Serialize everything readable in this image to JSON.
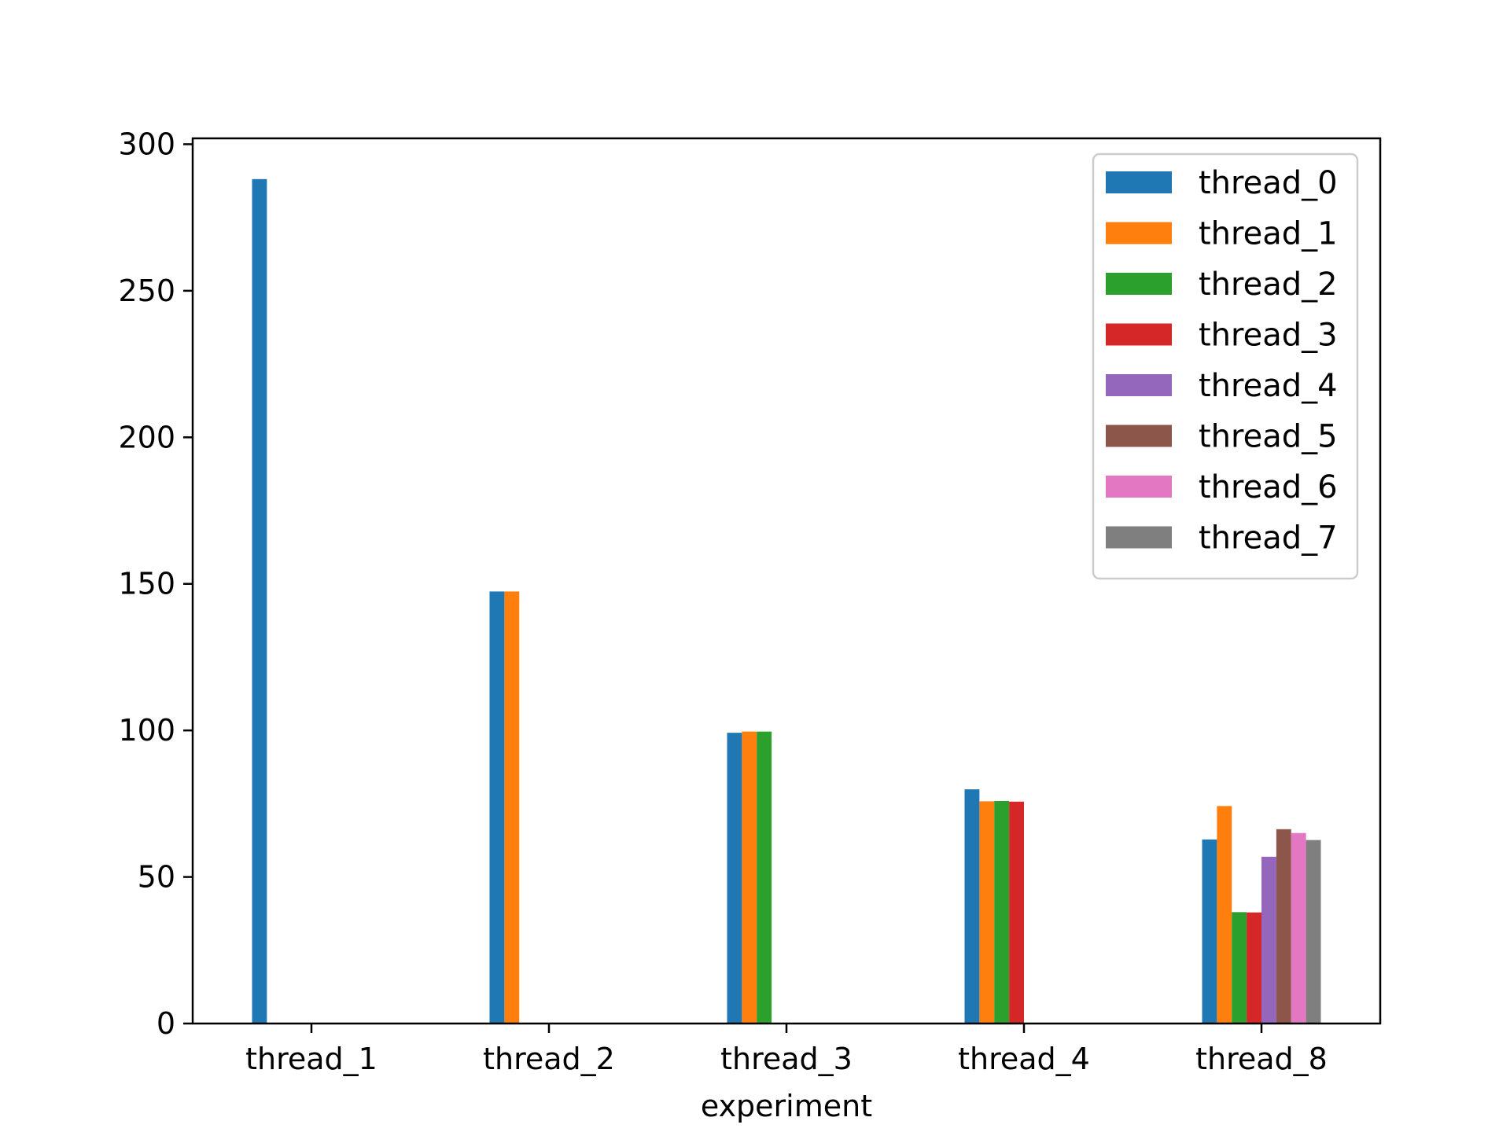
{
  "chart_data": {
    "type": "bar",
    "title": "",
    "xlabel": "experiment",
    "ylabel": "",
    "categories": [
      "thread_1",
      "thread_2",
      "thread_3",
      "thread_4",
      "thread_8"
    ],
    "ylim": [
      0,
      302
    ],
    "yticks": [
      "0",
      "50",
      "100",
      "150",
      "200",
      "250",
      "300"
    ],
    "grid": false,
    "legend_position": "top-right",
    "series": [
      {
        "name": "thread_0",
        "color": "#1f77b4",
        "values": [
          288.1,
          147.4,
          99.2,
          79.9,
          62.8
        ]
      },
      {
        "name": "thread_1",
        "color": "#ff7f0e",
        "values": [
          null,
          147.4,
          99.6,
          75.8,
          74.2
        ]
      },
      {
        "name": "thread_2",
        "color": "#2ca02c",
        "values": [
          null,
          null,
          99.6,
          75.9,
          38.0
        ]
      },
      {
        "name": "thread_3",
        "color": "#d62728",
        "values": [
          null,
          null,
          null,
          75.7,
          37.9
        ]
      },
      {
        "name": "thread_4",
        "color": "#9467bd",
        "values": [
          null,
          null,
          null,
          null,
          56.9
        ]
      },
      {
        "name": "thread_5",
        "color": "#8c564b",
        "values": [
          null,
          null,
          null,
          null,
          66.3
        ]
      },
      {
        "name": "thread_6",
        "color": "#e377c2",
        "values": [
          null,
          null,
          null,
          null,
          65.0
        ]
      },
      {
        "name": "thread_7",
        "color": "#7f7f7f",
        "values": [
          null,
          null,
          null,
          null,
          62.6
        ]
      }
    ]
  }
}
